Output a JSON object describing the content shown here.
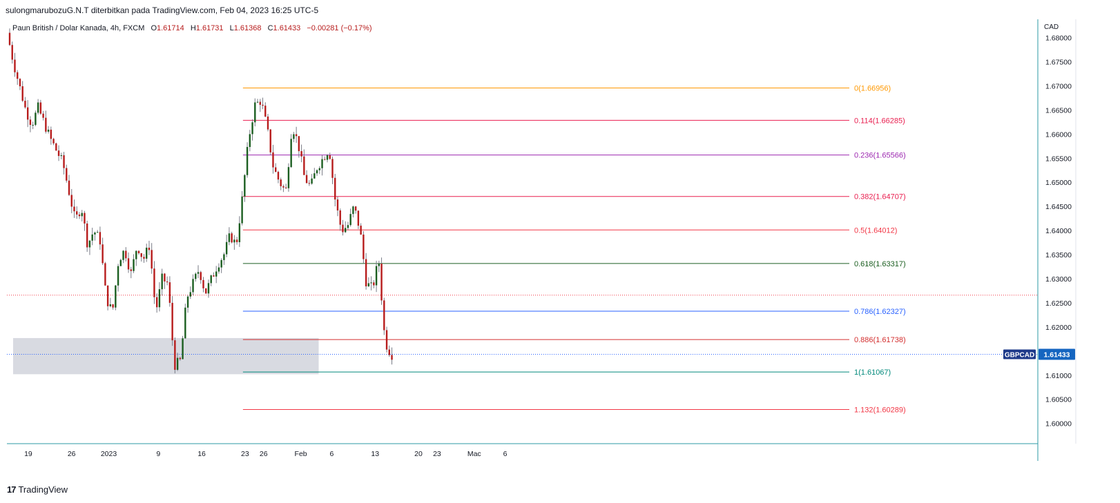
{
  "header": {
    "published": "sulongmarubozuG.N.T diterbitkan pada TradingView.com, Feb 04, 2023 16:25 UTC-5"
  },
  "legend": {
    "symbol": "Paun British / Dolar Kanada, 4h, FXCM",
    "o_label": "O",
    "o": "1.61714",
    "h_label": "H",
    "h": "1.61731",
    "l_label": "L",
    "l": "1.61368",
    "c_label": "C",
    "c": "1.61433",
    "change": "−0.00281 (−0.17%)"
  },
  "price_scale": {
    "currency": "CAD",
    "ticks": [
      "1.68000",
      "1.67500",
      "1.67000",
      "1.66500",
      "1.66000",
      "1.65500",
      "1.65000",
      "1.64500",
      "1.64000",
      "1.63500",
      "1.63000",
      "1.62500",
      "1.62000",
      "1.61500",
      "1.61000",
      "1.60500",
      "1.60000"
    ],
    "last_badge_symbol": "GBPCAD",
    "last_badge_price": "1.61433"
  },
  "time_scale": {
    "labels": [
      "19",
      "26",
      "2023",
      "9",
      "16",
      "23",
      "26",
      "Feb",
      "6",
      "13",
      "20",
      "23",
      "Mac",
      "6"
    ]
  },
  "footer": {
    "brand": "TradingView"
  },
  "colors": {
    "up": "#26a69a",
    "up_body": "#1b5e20",
    "down": "#b71c1c",
    "wick": "#787b86",
    "zone": "#d1d4dc",
    "last_price_line": "#2962ff",
    "ref_line": "#f23645",
    "axis_line": "#2e9aa6"
  },
  "chart_data": {
    "type": "candlestick",
    "instrument": "GBPCAD",
    "timeframe": "4h",
    "ylim": [
      1.5958,
      1.6838
    ],
    "last_close": 1.61433,
    "reference_price_dotted": 1.6266,
    "demand_zone": {
      "from_date": "2022-12-17",
      "to_date": "2023-02-03",
      "low": 1.6102,
      "high": 1.6177
    },
    "fib_levels": [
      {
        "ratio": "0",
        "price": 1.66956,
        "label": "0(1.66956)",
        "color": "#ff9800"
      },
      {
        "ratio": "0.114",
        "price": 1.66285,
        "label": "0.114(1.66285)",
        "color": "#e91e4f"
      },
      {
        "ratio": "0.236",
        "price": 1.65566,
        "label": "0.236(1.65566)",
        "color": "#9c27b0"
      },
      {
        "ratio": "0.382",
        "price": 1.64707,
        "label": "0.382(1.64707)",
        "color": "#e91e4f"
      },
      {
        "ratio": "0.5",
        "price": 1.64012,
        "label": "0.5(1.64012)",
        "color": "#f23645"
      },
      {
        "ratio": "0.618",
        "price": 1.63317,
        "label": "0.618(1.63317)",
        "color": "#1b5e20"
      },
      {
        "ratio": "0.786",
        "price": 1.62327,
        "label": "0.786(1.62327)",
        "color": "#2962ff"
      },
      {
        "ratio": "0.886",
        "price": 1.61738,
        "label": "0.886(1.61738)",
        "color": "#d32f2f"
      },
      {
        "ratio": "1",
        "price": 1.61067,
        "label": "1(1.61067)",
        "color": "#00897b"
      },
      {
        "ratio": "1.132",
        "price": 1.60289,
        "label": "1.132(1.60289)",
        "color": "#f23645"
      }
    ],
    "fib_start_date": "2023-01-23",
    "path_anchors": [
      [
        "2022-12-16",
        1.681
      ],
      [
        "2022-12-17",
        1.675
      ],
      [
        "2022-12-19",
        1.665
      ],
      [
        "2022-12-20",
        1.662
      ],
      [
        "2022-12-21",
        1.6655
      ],
      [
        "2022-12-23",
        1.659
      ],
      [
        "2022-12-25",
        1.654
      ],
      [
        "2022-12-26",
        1.648
      ],
      [
        "2022-12-27",
        1.642
      ],
      [
        "2022-12-28",
        1.645
      ],
      [
        "2022-12-29",
        1.637
      ],
      [
        "2022-12-30",
        1.64
      ],
      [
        "2022-12-31",
        1.638
      ],
      [
        "2023-01-01",
        1.626
      ],
      [
        "2023-01-02",
        1.623
      ],
      [
        "2023-01-03",
        1.634
      ],
      [
        "2023-01-04",
        1.636
      ],
      [
        "2023-01-05",
        1.631
      ],
      [
        "2023-01-06",
        1.637
      ],
      [
        "2023-01-07",
        1.634
      ],
      [
        "2023-01-08",
        1.637
      ],
      [
        "2023-01-09",
        1.623
      ],
      [
        "2023-01-10",
        1.63
      ],
      [
        "2023-01-11",
        1.629
      ],
      [
        "2023-01-12",
        1.612
      ],
      [
        "2023-01-13",
        1.613
      ],
      [
        "2023-01-14",
        1.626
      ],
      [
        "2023-01-15",
        1.629
      ],
      [
        "2023-01-16",
        1.632
      ],
      [
        "2023-01-17",
        1.627
      ],
      [
        "2023-01-18",
        1.63
      ],
      [
        "2023-01-19",
        1.633
      ],
      [
        "2023-01-20",
        1.635
      ],
      [
        "2023-01-21",
        1.639
      ],
      [
        "2023-01-22",
        1.637
      ],
      [
        "2023-01-23",
        1.647
      ],
      [
        "2023-01-24",
        1.659
      ],
      [
        "2023-01-25",
        1.666
      ],
      [
        "2023-01-26",
        1.667
      ],
      [
        "2023-01-27",
        1.661
      ],
      [
        "2023-01-28",
        1.653
      ],
      [
        "2023-01-29",
        1.65
      ],
      [
        "2023-01-30",
        1.648
      ],
      [
        "2023-01-31",
        1.662
      ],
      [
        "2023-02-01",
        1.658
      ],
      [
        "2023-02-02",
        1.651
      ],
      [
        "2023-02-03",
        1.649
      ],
      [
        "2023-02-04",
        1.653
      ],
      [
        "2023-02-05",
        1.655
      ],
      [
        "2023-02-06",
        1.657
      ],
      [
        "2023-02-07",
        1.646
      ],
      [
        "2023-02-08",
        1.64
      ],
      [
        "2023-02-09",
        1.641
      ],
      [
        "2023-02-10",
        1.645
      ],
      [
        "2023-02-11",
        1.64
      ],
      [
        "2023-02-12",
        1.629
      ],
      [
        "2023-02-13",
        1.628
      ],
      [
        "2023-02-14",
        1.634
      ],
      [
        "2023-02-15",
        1.617
      ],
      [
        "2023-02-16",
        1.6143
      ]
    ]
  }
}
